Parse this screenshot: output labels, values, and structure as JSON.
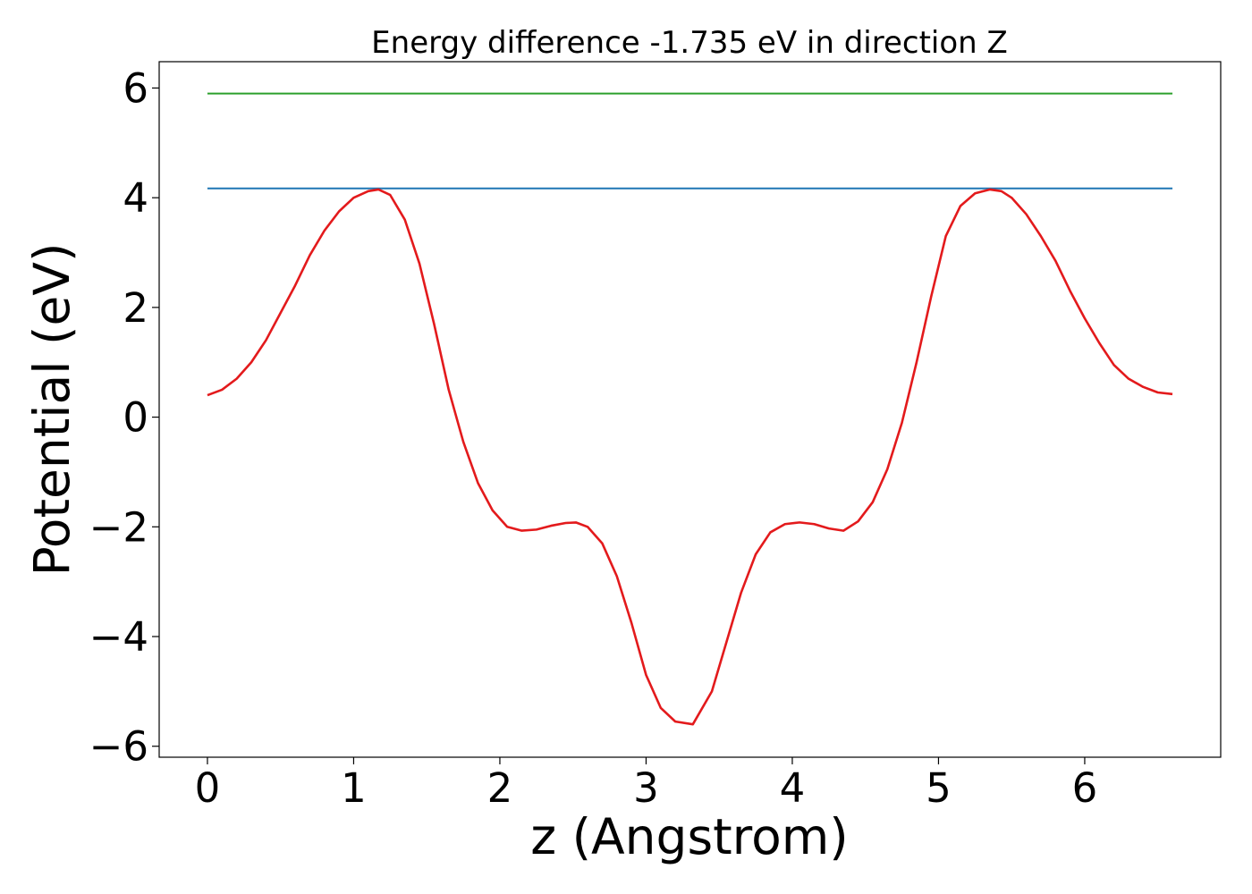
{
  "chart_data": {
    "type": "line",
    "title": "Energy difference -1.735 eV in direction Z",
    "xlabel": "z (Angstrom)",
    "ylabel": "Potential (eV)",
    "xlim": [
      -0.33,
      6.93
    ],
    "ylim": [
      -6.2,
      6.48
    ],
    "xticks": [
      0,
      1,
      2,
      3,
      4,
      5,
      6
    ],
    "xtick_labels": [
      "0",
      "1",
      "2",
      "3",
      "4",
      "5",
      "6"
    ],
    "yticks": [
      -6,
      -4,
      -2,
      0,
      2,
      4,
      6
    ],
    "ytick_labels": [
      "−6",
      "−4",
      "−2",
      "0",
      "2",
      "4",
      "6"
    ],
    "grid": false,
    "series": [
      {
        "color": "#2ca02c",
        "x": [
          0,
          6.6
        ],
        "y": [
          5.9,
          5.9
        ]
      },
      {
        "color": "#1f77b4",
        "x": [
          0,
          6.6
        ],
        "y": [
          4.17,
          4.17
        ]
      },
      {
        "color": "#e31a1c",
        "x": [
          0,
          0.1,
          0.2,
          0.3,
          0.4,
          0.5,
          0.6,
          0.7,
          0.8,
          0.9,
          1.0,
          1.1,
          1.17,
          1.25,
          1.35,
          1.45,
          1.55,
          1.65,
          1.75,
          1.85,
          1.95,
          2.05,
          2.15,
          2.25,
          2.35,
          2.45,
          2.52,
          2.6,
          2.7,
          2.8,
          2.9,
          3.0,
          3.1,
          3.2,
          3.32,
          3.45,
          3.55,
          3.65,
          3.75,
          3.85,
          3.95,
          4.05,
          4.15,
          4.25,
          4.35,
          4.45,
          4.55,
          4.65,
          4.75,
          4.85,
          4.95,
          5.05,
          5.15,
          5.25,
          5.35,
          5.43,
          5.5,
          5.6,
          5.7,
          5.8,
          5.9,
          6.0,
          6.1,
          6.2,
          6.3,
          6.4,
          6.5,
          6.6
        ],
        "y": [
          0.4,
          0.5,
          0.7,
          1.0,
          1.4,
          1.9,
          2.4,
          2.95,
          3.4,
          3.75,
          4.0,
          4.12,
          4.15,
          4.05,
          3.6,
          2.8,
          1.7,
          0.5,
          -0.45,
          -1.2,
          -1.7,
          -2.0,
          -2.07,
          -2.05,
          -1.98,
          -1.93,
          -1.92,
          -2.0,
          -2.3,
          -2.9,
          -3.75,
          -4.7,
          -5.3,
          -5.55,
          -5.6,
          -5.0,
          -4.1,
          -3.2,
          -2.5,
          -2.1,
          -1.95,
          -1.92,
          -1.95,
          -2.03,
          -2.07,
          -1.9,
          -1.55,
          -0.95,
          -0.1,
          1.0,
          2.2,
          3.3,
          3.85,
          4.08,
          4.15,
          4.12,
          4.0,
          3.7,
          3.3,
          2.85,
          2.3,
          1.8,
          1.35,
          0.95,
          0.7,
          0.55,
          0.45,
          0.42
        ]
      }
    ]
  }
}
